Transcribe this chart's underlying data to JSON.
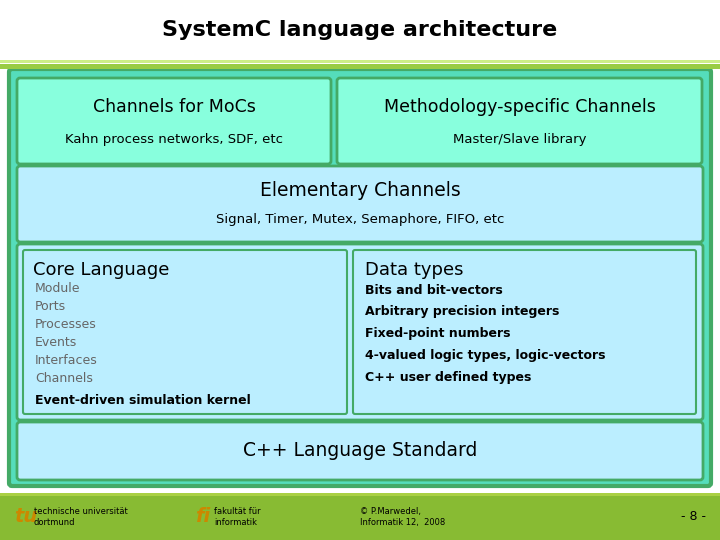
{
  "title": "SystemC language architecture",
  "title_fontsize": 16,
  "title_fontweight": "bold",
  "bg_color": "#ffffff",
  "outer_box_bg": "#55ddbb",
  "outer_box_border": "#44aa66",
  "top_row_left_title": "Channels for MoCs",
  "top_row_left_sub": "Kahn process networks, SDF, etc",
  "top_row_right_title": "Methodology-specific Channels",
  "top_row_right_sub": "Master/Slave library",
  "top_box_bg": "#88ffdd",
  "top_box_border": "#44aa66",
  "elem_title": "Elementary Channels",
  "elem_sub": "Signal, Timer, Mutex, Semaphore, FIFO, etc",
  "elem_box_bg": "#bbeeff",
  "elem_box_border": "#44aa66",
  "core_title": "Core Language",
  "core_items": [
    "Module",
    "Ports",
    "Processes",
    "Events",
    "Interfaces",
    "Channels"
  ],
  "core_bold": "Event-driven simulation kernel",
  "data_title": "Data types",
  "data_items": [
    "Bits and bit-vectors",
    "Arbitrary precision integers",
    "Fixed-point numbers",
    "4-valued logic types, logic-vectors",
    "C++ user defined types"
  ],
  "inner_box_bg": "#bbeeff",
  "inner_box_border": "#44aa66",
  "cpp_title": "C++ Language Standard",
  "cpp_box_bg": "#bbeeff",
  "cpp_box_border": "#44aa66",
  "footer_bar_color": "#88bb33",
  "footer_sep_color": "#aad044",
  "footer_text1": "technische universität\ndortmund",
  "footer_text2": "fakultät für\ninformatik",
  "footer_text3": "© P.Marwedel,\nInformatik 12,  2008",
  "footer_text4": "- 8 -",
  "footer_logo_color": "#cc8800",
  "green_bar_color": "#99cc44"
}
